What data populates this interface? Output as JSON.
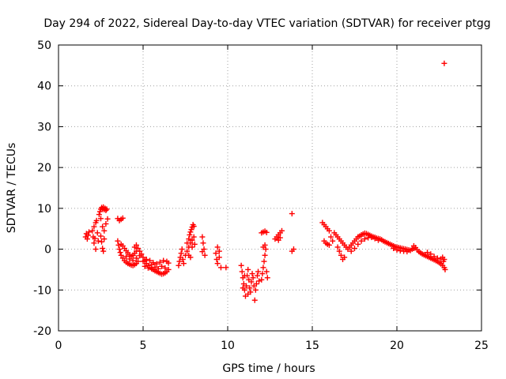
{
  "chart_data": {
    "type": "scatter",
    "title": "Day 294 of 2022, Sidereal Day-to-day VTEC variation (SDTVAR) for receiver ptgg",
    "xlabel": "GPS time / hours",
    "ylabel": "SDTVAR / TECUs",
    "xlim": [
      0,
      25
    ],
    "ylim": [
      -20,
      50
    ],
    "xticks": [
      0,
      5,
      10,
      15,
      20,
      25
    ],
    "yticks": [
      -20,
      -10,
      0,
      10,
      20,
      30,
      40,
      50
    ],
    "grid": true,
    "marker": "plus",
    "color": "#ff0000",
    "series": [
      {
        "name": "SDTVAR",
        "points": [
          [
            1.6,
            3.0
          ],
          [
            1.65,
            3.8
          ],
          [
            1.7,
            2.5
          ],
          [
            1.75,
            3.4
          ],
          [
            1.8,
            4.2
          ],
          [
            2.0,
            4.5
          ],
          [
            2.05,
            3.0
          ],
          [
            2.1,
            1.5
          ],
          [
            2.15,
            2.6
          ],
          [
            2.2,
            0.0
          ],
          [
            2.1,
            5.5
          ],
          [
            2.2,
            6.5
          ],
          [
            2.25,
            7.0
          ],
          [
            2.3,
            4.0
          ],
          [
            2.35,
            2.0
          ],
          [
            2.4,
            8.5
          ],
          [
            2.45,
            9.2
          ],
          [
            2.5,
            9.8
          ],
          [
            2.55,
            10.2
          ],
          [
            2.6,
            9.9
          ],
          [
            2.65,
            10.3
          ],
          [
            2.7,
            9.7
          ],
          [
            2.75,
            10.0
          ],
          [
            2.8,
            9.5
          ],
          [
            2.85,
            9.8
          ],
          [
            2.5,
            7.5
          ],
          [
            2.6,
            5.5
          ],
          [
            2.7,
            4.5
          ],
          [
            2.8,
            6.2
          ],
          [
            2.9,
            7.4
          ],
          [
            2.5,
            3.2
          ],
          [
            2.55,
            1.8
          ],
          [
            2.6,
            0.2
          ],
          [
            2.65,
            -0.5
          ],
          [
            2.7,
            2.5
          ],
          [
            3.5,
            7.5
          ],
          [
            3.6,
            7.0
          ],
          [
            3.7,
            7.3
          ],
          [
            3.8,
            7.6
          ],
          [
            3.5,
            2.0
          ],
          [
            3.55,
            1.0
          ],
          [
            3.6,
            0.0
          ],
          [
            3.65,
            -0.8
          ],
          [
            3.7,
            -1.5
          ],
          [
            3.8,
            -2.2
          ],
          [
            3.9,
            -2.8
          ],
          [
            4.0,
            -3.2
          ],
          [
            4.1,
            -3.5
          ],
          [
            4.2,
            -3.7
          ],
          [
            4.3,
            -3.9
          ],
          [
            4.4,
            -4.0
          ],
          [
            4.5,
            -3.8
          ],
          [
            4.6,
            -3.5
          ],
          [
            4.7,
            -3.0
          ],
          [
            3.7,
            1.2
          ],
          [
            3.8,
            0.8
          ],
          [
            3.9,
            0.2
          ],
          [
            4.0,
            -0.4
          ],
          [
            4.1,
            -0.9
          ],
          [
            4.2,
            -1.4
          ],
          [
            4.3,
            -1.8
          ],
          [
            4.4,
            -1.5
          ],
          [
            4.5,
            -1.0
          ],
          [
            4.6,
            -0.5
          ],
          [
            4.0,
            -1.8
          ],
          [
            4.2,
            -2.4
          ],
          [
            4.4,
            -2.8
          ],
          [
            4.6,
            -2.2
          ],
          [
            4.8,
            -1.6
          ],
          [
            4.5,
            0.5
          ],
          [
            4.6,
            1.0
          ],
          [
            4.7,
            0.2
          ],
          [
            4.8,
            -0.5
          ],
          [
            4.9,
            -1.2
          ],
          [
            5.0,
            -2.0
          ],
          [
            5.1,
            -2.8
          ],
          [
            5.2,
            -3.5
          ],
          [
            5.3,
            -4.0
          ],
          [
            5.4,
            -4.5
          ],
          [
            5.5,
            -4.8
          ],
          [
            5.6,
            -5.0
          ],
          [
            5.7,
            -5.3
          ],
          [
            5.8,
            -5.5
          ],
          [
            5.9,
            -5.7
          ],
          [
            6.0,
            -5.9
          ],
          [
            6.1,
            -6.1
          ],
          [
            6.2,
            -6.0
          ],
          [
            6.3,
            -5.8
          ],
          [
            6.4,
            -5.5
          ],
          [
            5.0,
            -3.0
          ],
          [
            5.2,
            -2.5
          ],
          [
            5.4,
            -2.8
          ],
          [
            5.6,
            -3.3
          ],
          [
            5.8,
            -3.6
          ],
          [
            6.0,
            -3.2
          ],
          [
            6.2,
            -2.8
          ],
          [
            6.4,
            -3.0
          ],
          [
            6.5,
            -3.4
          ],
          [
            5.1,
            -4.2
          ],
          [
            5.3,
            -4.6
          ],
          [
            5.5,
            -3.8
          ],
          [
            5.7,
            -4.4
          ],
          [
            5.9,
            -4.8
          ],
          [
            6.1,
            -4.2
          ],
          [
            6.3,
            -4.6
          ],
          [
            6.5,
            -5.0
          ],
          [
            7.1,
            -4.0
          ],
          [
            7.15,
            -3.0
          ],
          [
            7.2,
            -2.0
          ],
          [
            7.25,
            -1.0
          ],
          [
            7.3,
            0.0
          ],
          [
            7.35,
            -2.5
          ],
          [
            7.4,
            -3.5
          ],
          [
            7.5,
            -1.5
          ],
          [
            7.6,
            -0.5
          ],
          [
            7.7,
            0.5
          ],
          [
            7.6,
            1.5
          ],
          [
            7.7,
            2.5
          ],
          [
            7.75,
            3.5
          ],
          [
            7.8,
            4.2
          ],
          [
            7.85,
            4.8
          ],
          [
            7.9,
            5.4
          ],
          [
            7.95,
            6.0
          ],
          [
            8.0,
            5.6
          ],
          [
            7.8,
            1.5
          ],
          [
            7.9,
            0.5
          ],
          [
            7.7,
            -1.5
          ],
          [
            7.8,
            -2.0
          ],
          [
            7.9,
            2.2
          ],
          [
            8.0,
            3.0
          ],
          [
            8.05,
            1.2
          ],
          [
            8.5,
            3.0
          ],
          [
            8.55,
            1.5
          ],
          [
            8.6,
            0.0
          ],
          [
            8.65,
            -1.5
          ],
          [
            8.5,
            -0.6
          ],
          [
            9.3,
            -1.0
          ],
          [
            9.35,
            -2.5
          ],
          [
            9.4,
            -3.5
          ],
          [
            9.5,
            -2.0
          ],
          [
            9.6,
            -4.5
          ],
          [
            9.5,
            -0.5
          ],
          [
            9.4,
            0.5
          ],
          [
            9.9,
            -4.5
          ],
          [
            10.8,
            -4.0
          ],
          [
            10.85,
            -5.5
          ],
          [
            10.9,
            -7.0
          ],
          [
            10.95,
            -8.5
          ],
          [
            11.0,
            -10.0
          ],
          [
            11.05,
            -11.5
          ],
          [
            11.1,
            -9.0
          ],
          [
            11.15,
            -6.5
          ],
          [
            11.2,
            -5.0
          ],
          [
            11.25,
            -7.5
          ],
          [
            11.3,
            -9.5
          ],
          [
            11.35,
            -10.5
          ],
          [
            11.4,
            -8.0
          ],
          [
            11.45,
            -6.0
          ],
          [
            11.5,
            -7.0
          ],
          [
            11.55,
            -9.0
          ],
          [
            11.6,
            -12.5
          ],
          [
            11.65,
            -10.0
          ],
          [
            11.7,
            -8.5
          ],
          [
            11.75,
            -6.5
          ],
          [
            11.8,
            -5.5
          ],
          [
            11.85,
            -7.8
          ],
          [
            10.9,
            -9.5
          ],
          [
            11.0,
            -6.5
          ],
          [
            11.2,
            -11.0
          ],
          [
            12.0,
            -7.5
          ],
          [
            12.05,
            -6.0
          ],
          [
            12.1,
            -4.5
          ],
          [
            12.15,
            -3.0
          ],
          [
            12.2,
            -1.5
          ],
          [
            12.25,
            0.0
          ],
          [
            12.3,
            -5.5
          ],
          [
            12.35,
            -7.0
          ],
          [
            12.1,
            0.5
          ],
          [
            12.2,
            1.0
          ],
          [
            12.0,
            4.0
          ],
          [
            12.1,
            4.2
          ],
          [
            12.2,
            4.4
          ],
          [
            12.3,
            4.1
          ],
          [
            12.8,
            2.5
          ],
          [
            12.9,
            3.0
          ],
          [
            13.0,
            3.5
          ],
          [
            13.1,
            4.0
          ],
          [
            13.2,
            4.5
          ],
          [
            13.0,
            2.2
          ],
          [
            13.1,
            2.8
          ],
          [
            13.8,
            8.7
          ],
          [
            13.8,
            -0.5
          ],
          [
            13.9,
            0.0
          ],
          [
            15.6,
            6.5
          ],
          [
            15.7,
            6.0
          ],
          [
            15.8,
            5.5
          ],
          [
            15.9,
            5.0
          ],
          [
            16.0,
            4.5
          ],
          [
            15.7,
            2.0
          ],
          [
            15.8,
            1.5
          ],
          [
            15.9,
            1.2
          ],
          [
            16.0,
            1.0
          ],
          [
            16.1,
            3.0
          ],
          [
            16.2,
            2.0
          ],
          [
            16.3,
            4.0
          ],
          [
            16.4,
            3.5
          ],
          [
            16.5,
            3.0
          ],
          [
            16.5,
            0.5
          ],
          [
            16.6,
            -0.5
          ],
          [
            16.7,
            -1.5
          ],
          [
            16.8,
            -2.5
          ],
          [
            16.9,
            -2.0
          ],
          [
            16.6,
            2.5
          ],
          [
            16.7,
            2.0
          ],
          [
            16.8,
            1.5
          ],
          [
            16.9,
            1.0
          ],
          [
            17.0,
            0.5
          ],
          [
            17.1,
            0.0
          ],
          [
            17.2,
            0.5
          ],
          [
            17.3,
            1.0
          ],
          [
            17.4,
            1.5
          ],
          [
            17.5,
            2.0
          ],
          [
            17.6,
            2.5
          ],
          [
            17.7,
            3.0
          ],
          [
            17.8,
            3.2
          ],
          [
            17.9,
            3.5
          ],
          [
            18.0,
            3.7
          ],
          [
            18.1,
            3.9
          ],
          [
            18.2,
            3.8
          ],
          [
            18.3,
            3.6
          ],
          [
            18.4,
            3.4
          ],
          [
            18.5,
            3.2
          ],
          [
            18.6,
            3.0
          ],
          [
            18.7,
            2.9
          ],
          [
            18.8,
            2.7
          ],
          [
            18.9,
            2.6
          ],
          [
            19.0,
            2.5
          ],
          [
            17.3,
            -0.5
          ],
          [
            17.5,
            0.2
          ],
          [
            17.7,
            1.2
          ],
          [
            17.9,
            2.0
          ],
          [
            18.1,
            2.5
          ],
          [
            18.3,
            2.8
          ],
          [
            18.5,
            2.9
          ],
          [
            18.7,
            2.6
          ],
          [
            18.9,
            2.2
          ],
          [
            19.1,
            2.3
          ],
          [
            19.2,
            2.0
          ],
          [
            19.3,
            1.8
          ],
          [
            19.4,
            1.6
          ],
          [
            19.5,
            1.4
          ],
          [
            19.6,
            1.2
          ],
          [
            19.7,
            1.0
          ],
          [
            19.8,
            0.8
          ],
          [
            19.9,
            0.6
          ],
          [
            20.0,
            0.5
          ],
          [
            20.1,
            0.4
          ],
          [
            20.2,
            0.3
          ],
          [
            20.3,
            0.2
          ],
          [
            20.4,
            0.1
          ],
          [
            20.5,
            0.0
          ],
          [
            20.6,
            -0.1
          ],
          [
            20.7,
            -0.2
          ],
          [
            20.8,
            -0.3
          ],
          [
            20.9,
            0.0
          ],
          [
            21.0,
            0.2
          ],
          [
            19.8,
            0.2
          ],
          [
            20.0,
            -0.2
          ],
          [
            20.2,
            -0.4
          ],
          [
            20.4,
            -0.5
          ],
          [
            20.6,
            -0.6
          ],
          [
            21.0,
            0.8
          ],
          [
            21.1,
            0.4
          ],
          [
            21.2,
            -0.2
          ],
          [
            21.3,
            -0.6
          ],
          [
            21.4,
            -0.9
          ],
          [
            21.5,
            -1.2
          ],
          [
            21.6,
            -1.4
          ],
          [
            21.7,
            -1.6
          ],
          [
            21.8,
            -1.8
          ],
          [
            21.9,
            -2.0
          ],
          [
            22.0,
            -2.2
          ],
          [
            22.1,
            -2.4
          ],
          [
            22.2,
            -2.6
          ],
          [
            22.3,
            -2.8
          ],
          [
            22.4,
            -3.0
          ],
          [
            22.5,
            -3.3
          ],
          [
            22.6,
            -3.6
          ],
          [
            22.7,
            -4.0
          ],
          [
            22.8,
            -4.5
          ],
          [
            22.85,
            -5.0
          ],
          [
            21.8,
            -0.8
          ],
          [
            22.0,
            -1.2
          ],
          [
            22.2,
            -1.8
          ],
          [
            22.4,
            -2.2
          ],
          [
            22.6,
            -2.4
          ],
          [
            22.7,
            -2.0
          ],
          [
            22.75,
            -3.0
          ],
          [
            22.8,
            -2.5
          ],
          [
            22.8,
            45.5
          ]
        ]
      }
    ]
  }
}
